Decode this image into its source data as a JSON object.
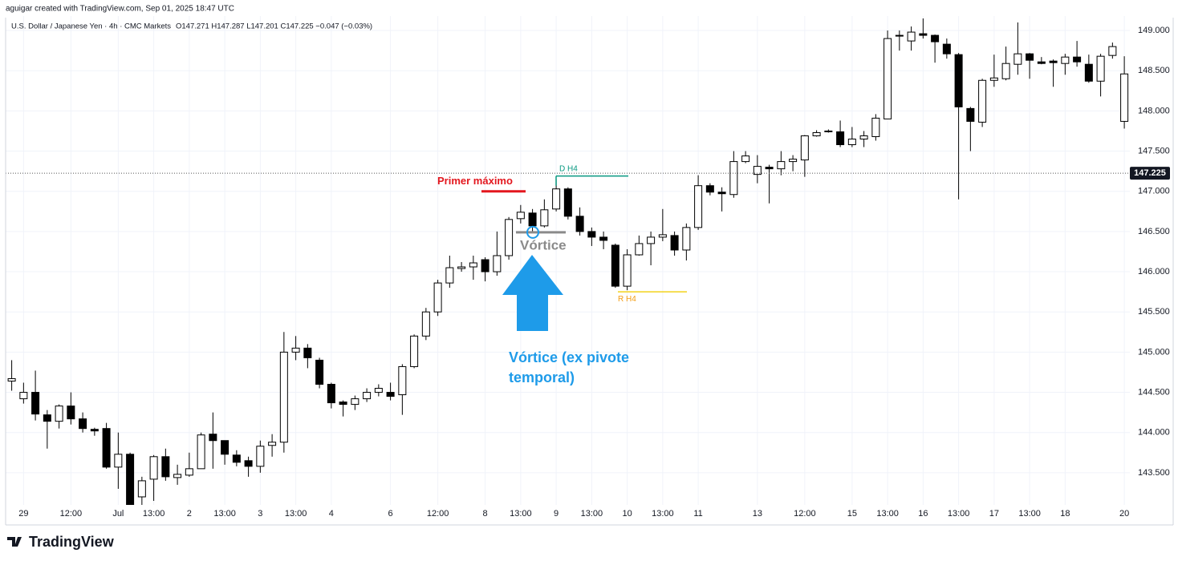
{
  "header": {
    "credit": "aguigar created with TradingView.com, Sep 01, 2025 18:47 UTC",
    "symbol": "U.S. Dollar / Japanese Yen · 4h · CMC Markets",
    "ohlc": "O147.271 H147.287 L147.201 C147.225 −0.047 (−0.03%)"
  },
  "footer": {
    "brand": "TradingView"
  },
  "chart_data": {
    "type": "candlestick",
    "categories": [
      null,
      "29",
      null,
      null,
      null,
      "12:00",
      null,
      null,
      null,
      "Jul",
      null,
      null,
      "13:00",
      null,
      null,
      "2",
      null,
      null,
      "13:00",
      null,
      null,
      "3",
      null,
      null,
      "13:00",
      null,
      null,
      "4",
      null,
      null,
      null,
      null,
      "6",
      null,
      null,
      null,
      "12:00",
      null,
      null,
      null,
      "8",
      null,
      null,
      "13:00",
      null,
      null,
      "9",
      null,
      null,
      "13:00",
      null,
      null,
      "10",
      null,
      null,
      "13:00",
      null,
      null,
      "11",
      null,
      null,
      null,
      null,
      "13",
      null,
      null,
      null,
      "12:00",
      null,
      null,
      null,
      "15",
      null,
      null,
      "13:00",
      null,
      null,
      "16",
      null,
      null,
      "13:00",
      null,
      null,
      "17",
      null,
      null,
      "13:00",
      null,
      null,
      "18",
      null,
      null,
      null,
      null,
      "20"
    ],
    "open": [
      144.64,
      144.42,
      144.5,
      144.22,
      144.14,
      144.33,
      144.17,
      144.04,
      144.05,
      143.57,
      143.73,
      143.2,
      143.42,
      143.7,
      143.44,
      143.47,
      143.55,
      143.98,
      143.9,
      143.72,
      143.65,
      143.58,
      143.84,
      143.88,
      145.0,
      145.05,
      144.9,
      144.6,
      144.38,
      144.35,
      144.42,
      144.5,
      144.5,
      144.47,
      144.82,
      145.2,
      145.5,
      145.86,
      146.04,
      146.06,
      146.15,
      146.0,
      146.2,
      146.66,
      146.73,
      146.57,
      146.78,
      147.03,
      146.69,
      146.5,
      146.43,
      146.33,
      145.82,
      146.21,
      146.35,
      146.43,
      146.45,
      146.27,
      146.55,
      147.07,
      146.99,
      146.96,
      147.37,
      147.21,
      147.3,
      147.28,
      147.37,
      147.39,
      147.69,
      147.74,
      147.74,
      147.58,
      147.65,
      147.68,
      147.9,
      148.93,
      148.87,
      148.96,
      148.94,
      148.83,
      148.7,
      148.03,
      147.86,
      148.38,
      148.4,
      148.58,
      148.71,
      148.61,
      148.62,
      148.59,
      148.67,
      148.58,
      148.37,
      148.69,
      147.87
    ],
    "high": [
      144.9,
      144.62,
      144.77,
      144.28,
      144.35,
      144.5,
      144.25,
      144.06,
      144.12,
      144.0,
      143.75,
      143.45,
      143.72,
      143.8,
      143.6,
      143.75,
      144.0,
      144.25,
      143.9,
      143.78,
      143.7,
      143.9,
      143.98,
      145.25,
      145.2,
      145.1,
      144.93,
      144.62,
      144.4,
      144.46,
      144.55,
      144.6,
      144.62,
      144.85,
      145.22,
      145.55,
      145.9,
      146.2,
      146.12,
      146.2,
      146.18,
      146.5,
      146.68,
      146.83,
      146.78,
      146.9,
      147.15,
      147.05,
      146.8,
      146.55,
      146.5,
      146.35,
      146.28,
      146.45,
      146.5,
      146.78,
      146.5,
      146.6,
      147.2,
      147.1,
      147.05,
      147.5,
      147.5,
      147.45,
      147.33,
      147.5,
      147.45,
      147.7,
      147.76,
      147.77,
      147.88,
      147.8,
      147.75,
      147.96,
      149.0,
      149.0,
      149.05,
      149.15,
      148.95,
      148.9,
      148.72,
      148.05,
      148.4,
      148.7,
      148.8,
      149.1,
      148.72,
      148.67,
      148.64,
      148.71,
      148.87,
      148.7,
      148.71,
      148.85,
      148.68
    ],
    "low": [
      144.52,
      144.36,
      144.15,
      143.8,
      144.05,
      144.1,
      144.0,
      143.96,
      143.55,
      143.3,
      143.0,
      143.05,
      143.15,
      143.4,
      143.35,
      143.45,
      143.55,
      143.55,
      143.6,
      143.58,
      143.45,
      143.5,
      143.7,
      143.75,
      144.9,
      144.8,
      144.55,
      144.3,
      144.2,
      144.28,
      144.38,
      144.45,
      144.4,
      144.22,
      144.8,
      145.15,
      145.45,
      145.8,
      146.0,
      145.9,
      145.88,
      145.95,
      146.15,
      146.6,
      146.5,
      146.55,
      146.75,
      146.65,
      146.45,
      146.32,
      146.28,
      145.8,
      145.77,
      146.2,
      146.08,
      146.38,
      146.2,
      146.14,
      146.52,
      146.95,
      146.75,
      146.92,
      147.35,
      147.1,
      146.85,
      147.2,
      147.25,
      147.18,
      147.68,
      147.73,
      147.55,
      147.55,
      147.55,
      147.63,
      147.9,
      148.75,
      148.75,
      148.9,
      148.6,
      148.65,
      146.9,
      147.5,
      147.8,
      148.3,
      148.38,
      148.45,
      148.4,
      148.58,
      148.3,
      148.45,
      148.55,
      148.35,
      148.18,
      148.65,
      147.78
    ],
    "close": [
      144.67,
      144.5,
      144.23,
      144.14,
      144.33,
      144.17,
      144.05,
      144.02,
      143.57,
      143.73,
      143.1,
      143.4,
      143.7,
      143.45,
      143.48,
      143.55,
      143.97,
      143.9,
      143.73,
      143.63,
      143.58,
      143.83,
      143.88,
      145.0,
      145.05,
      144.93,
      144.6,
      144.37,
      144.35,
      144.42,
      144.5,
      144.55,
      144.45,
      144.82,
      145.2,
      145.5,
      145.86,
      146.05,
      146.06,
      146.11,
      146.0,
      146.2,
      146.65,
      146.74,
      146.57,
      146.77,
      147.03,
      146.69,
      146.5,
      146.43,
      146.39,
      145.82,
      146.21,
      146.35,
      146.43,
      146.46,
      146.27,
      146.55,
      147.07,
      146.99,
      146.97,
      147.37,
      147.44,
      147.31,
      147.28,
      147.37,
      147.4,
      147.69,
      147.73,
      147.75,
      147.58,
      147.65,
      147.69,
      147.91,
      148.9,
      148.94,
      148.98,
      148.94,
      148.86,
      148.71,
      148.05,
      147.87,
      148.38,
      148.41,
      148.59,
      148.71,
      148.63,
      148.59,
      148.6,
      148.67,
      148.61,
      148.37,
      148.68,
      148.8,
      148.46
    ],
    "up_color": "#ffffff",
    "down_color": "#000000",
    "ylim": [
      143.1,
      149.18
    ],
    "yticks": [
      {
        "value": 143.5,
        "label": "143.500"
      },
      {
        "value": 144,
        "label": "144.000"
      },
      {
        "value": 144.5,
        "label": "144.500"
      },
      {
        "value": 145,
        "label": "145.000"
      },
      {
        "value": 145.5,
        "label": "145.500"
      },
      {
        "value": 146,
        "label": "146.000"
      },
      {
        "value": 146.5,
        "label": "146.500"
      },
      {
        "value": 147,
        "label": "147.000"
      },
      {
        "value": 147.5,
        "label": "147.500"
      },
      {
        "value": 148,
        "label": "148.000"
      },
      {
        "value": 148.5,
        "label": "148.500"
      },
      {
        "value": 149,
        "label": "149.000"
      }
    ],
    "grid": true,
    "last_price": {
      "value": 147.225,
      "label": "147.225"
    },
    "annotations": {
      "primer_maximo": {
        "text": "Primer máximo",
        "level": 147.0,
        "color": "#e3171e"
      },
      "d_h4": {
        "text": "D H4",
        "level": 147.19,
        "color": "#089981"
      },
      "r_h4": {
        "text": "R H4",
        "level": 145.75,
        "color": "#f39c12",
        "line_color": "#f2d21b"
      },
      "vortice": {
        "text": "Vórtice",
        "level": 146.49,
        "color": "#8a8a8a"
      },
      "note": {
        "lines": [
          "Vórtice (ex pivote",
          "temporal)"
        ],
        "color": "#1e9be9"
      }
    }
  }
}
